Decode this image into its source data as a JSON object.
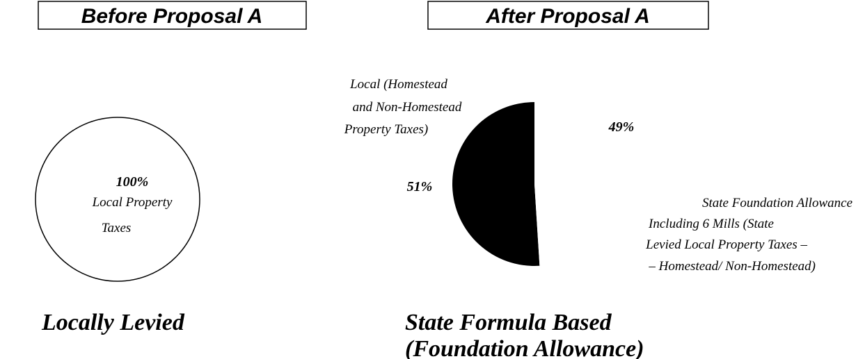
{
  "chart_data": [
    {
      "type": "pie",
      "title": "Before Proposal A",
      "categories": [
        [
          "Local Property",
          "Taxes"
        ]
      ],
      "values": [
        100
      ],
      "value_labels": [
        "100%"
      ],
      "colors": [
        "#ffffff"
      ],
      "outline": true,
      "caption": [
        "Locally Levied"
      ]
    },
    {
      "type": "pie",
      "title": "After Proposal A",
      "categories": [
        [
          "Local (Homestead",
          "and Non-Homestead",
          "Property Taxes)"
        ],
        [
          "State Foundation Allowance",
          "Including  6 Mills (State",
          "Levied Local Property Taxes –",
          "– Homestead/ Non-Homestead)"
        ]
      ],
      "values": [
        51,
        49
      ],
      "value_labels": [
        "51%",
        "49%"
      ],
      "colors": [
        "#000000",
        "#ffffff"
      ],
      "outline": false,
      "caption": [
        "State Formula Based",
        "(Foundation Allowance)"
      ]
    }
  ]
}
